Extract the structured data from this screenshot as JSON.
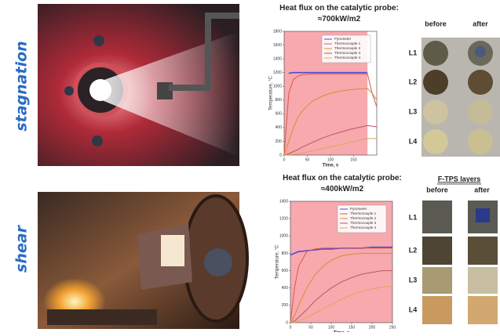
{
  "chart_data": [
    {
      "type": "line",
      "title": "Heat flux on the catalytic probe: ≈700kW/m2",
      "xlabel": "Time, s",
      "ylabel": "Temperature, °C",
      "x": [
        0,
        10,
        20,
        30,
        40,
        60,
        80,
        100,
        120,
        140,
        160,
        180,
        190,
        200
      ],
      "series": [
        {
          "name": "Pyrometer",
          "color": "#4a4ad8",
          "values": [
            null,
            1190,
            1200,
            1200,
            1200,
            1200,
            1200,
            1200,
            1200,
            1200,
            1200,
            1200,
            null,
            null
          ]
        },
        {
          "name": "Thermocouple 1",
          "color": "#e0564a",
          "values": [
            0,
            900,
            1100,
            1150,
            1170,
            1180,
            1180,
            1180,
            1180,
            1180,
            1180,
            1180,
            900,
            700
          ]
        },
        {
          "name": "Thermocouple 2",
          "color": "#d98a3a",
          "values": [
            0,
            200,
            400,
            550,
            650,
            780,
            850,
            900,
            930,
            950,
            960,
            970,
            900,
            800
          ]
        },
        {
          "name": "Thermocouple 3",
          "color": "#c0506a",
          "values": [
            0,
            20,
            50,
            80,
            120,
            180,
            240,
            290,
            330,
            370,
            400,
            430,
            420,
            410
          ]
        },
        {
          "name": "Thermocouple 4",
          "color": "#d9a85a",
          "values": [
            0,
            5,
            10,
            20,
            30,
            60,
            90,
            120,
            150,
            180,
            210,
            240,
            240,
            240
          ]
        }
      ],
      "xlim": [
        0,
        200
      ],
      "xticks": [
        0,
        50,
        100,
        150
      ],
      "ylim": [
        0,
        1800
      ],
      "yticks": [
        0,
        200,
        400,
        600,
        800,
        1000,
        1200,
        1400,
        1600,
        1800
      ],
      "shaded_span": [
        0,
        180
      ],
      "shaded_color": "#f7a9ad",
      "legend": "upper right",
      "grid": false
    },
    {
      "type": "line",
      "title": "Heat flux on the catalytic probe: ≈400kW/m2",
      "xlabel": "Time, s",
      "ylabel": "Temperature, °C",
      "x": [
        0,
        10,
        20,
        40,
        60,
        80,
        100,
        125,
        150,
        175,
        200,
        225,
        250
      ],
      "series": [
        {
          "name": "Pyrometer",
          "color": "#4a4ad8",
          "values": [
            780,
            800,
            820,
            830,
            840,
            850,
            850,
            860,
            860,
            860,
            870,
            870,
            870
          ]
        },
        {
          "name": "Thermocouple 1",
          "color": "#e0564a",
          "values": [
            0,
            400,
            650,
            820,
            850,
            860,
            860,
            860,
            860,
            860,
            860,
            860,
            860
          ]
        },
        {
          "name": "Thermocouple 2",
          "color": "#d98a3a",
          "values": [
            0,
            80,
            200,
            400,
            550,
            650,
            720,
            770,
            790,
            800,
            800,
            800,
            800
          ]
        },
        {
          "name": "Thermocouple 3",
          "color": "#c0506a",
          "values": [
            0,
            20,
            60,
            150,
            250,
            330,
            400,
            470,
            520,
            560,
            580,
            600,
            600
          ]
        },
        {
          "name": "Thermocouple 4",
          "color": "#d9a85a",
          "values": [
            0,
            5,
            20,
            60,
            110,
            160,
            210,
            270,
            320,
            360,
            390,
            410,
            420
          ]
        }
      ],
      "xlim": [
        0,
        250
      ],
      "xticks": [
        0,
        50,
        100,
        150,
        200,
        250
      ],
      "ylim": [
        0,
        1400
      ],
      "yticks": [
        0,
        200,
        400,
        600,
        800,
        1000,
        1200,
        1400
      ],
      "shaded_span": [
        0,
        250
      ],
      "shaded_color": "#f7a9ad",
      "legend": "upper right",
      "grid": false
    }
  ],
  "stagnation_panel": {
    "label": "stagnation",
    "columns": [
      "before",
      "after"
    ],
    "layers": [
      "L1",
      "L2",
      "L3",
      "L4"
    ]
  },
  "shear_panel": {
    "label": "shear",
    "heading": "F-TPS layers",
    "columns": [
      "before",
      "after"
    ],
    "layers": [
      "L1",
      "L2",
      "L3",
      "L4"
    ]
  }
}
